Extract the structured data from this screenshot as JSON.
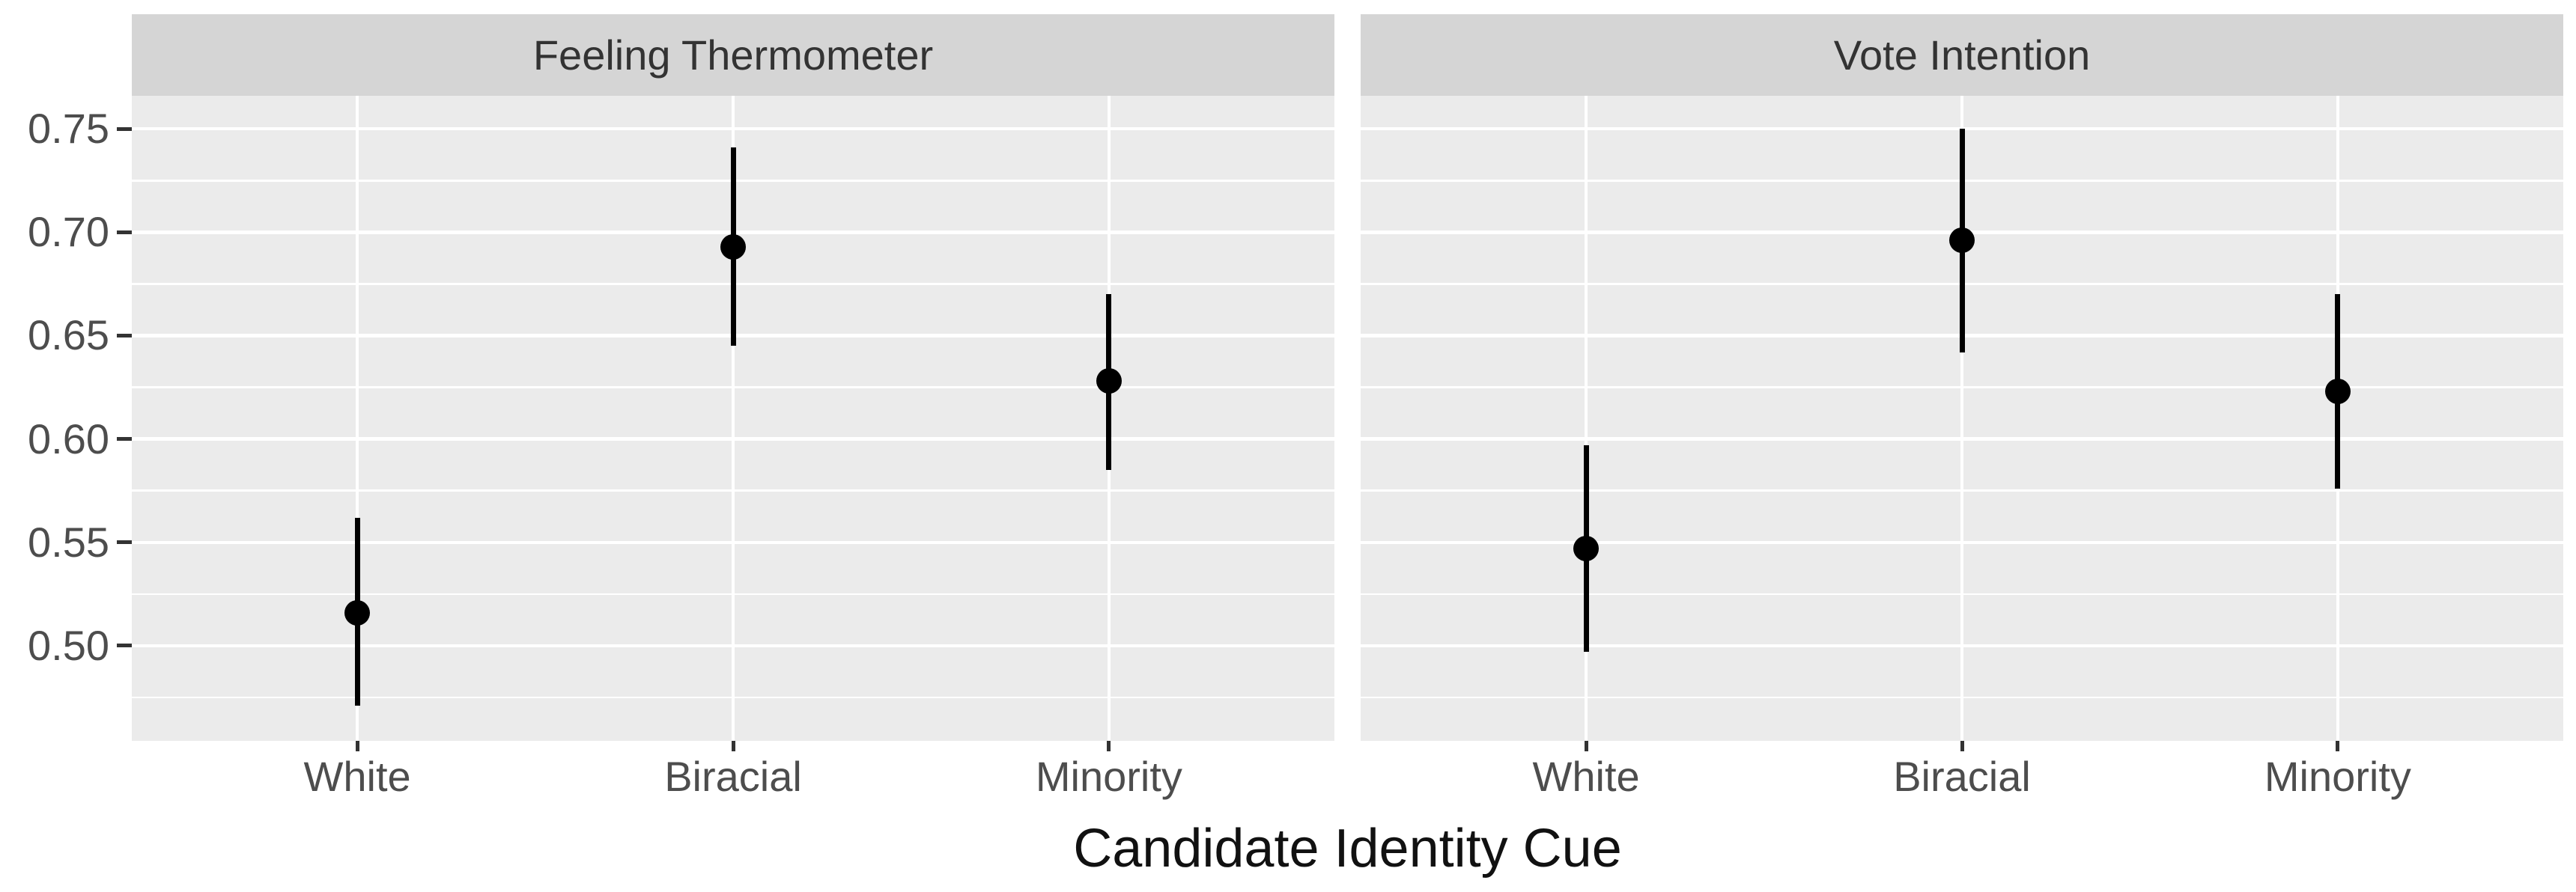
{
  "chart_data": {
    "type": "pointrange",
    "title": "",
    "xlabel": "Candidate Identity Cue",
    "ylabel": "",
    "categories": [
      "White",
      "Biracial",
      "Minority"
    ],
    "y_ticks": [
      0.5,
      0.55,
      0.6,
      0.65,
      0.7,
      0.75
    ],
    "y_tick_labels": [
      "0.50",
      "0.55",
      "0.60",
      "0.65",
      "0.70",
      "0.75"
    ],
    "ylim": [
      0.454,
      0.766
    ],
    "grid": {
      "major": "white",
      "minor": "white",
      "minor_step": 0.025,
      "legend": "none"
    },
    "facets": [
      {
        "title": "Feeling Thermometer",
        "series": [
          {
            "category": "White",
            "value": 0.516,
            "lower": 0.471,
            "upper": 0.562
          },
          {
            "category": "Biracial",
            "value": 0.693,
            "lower": 0.645,
            "upper": 0.741
          },
          {
            "category": "Minority",
            "value": 0.628,
            "lower": 0.585,
            "upper": 0.67
          }
        ]
      },
      {
        "title": "Vote Intention",
        "series": [
          {
            "category": "White",
            "value": 0.547,
            "lower": 0.497,
            "upper": 0.597
          },
          {
            "category": "Biracial",
            "value": 0.696,
            "lower": 0.642,
            "upper": 0.75
          },
          {
            "category": "Minority",
            "value": 0.623,
            "lower": 0.576,
            "upper": 0.67
          }
        ]
      }
    ],
    "colors": {
      "panel_background": "#ebebeb",
      "strip_background": "#d5d5d5",
      "gridline": "#ffffff",
      "point": "#000000",
      "axis_text": "#4d4d4d",
      "strip_text": "#333333",
      "axis_title_text": "#111111",
      "tick_mark": "#333333",
      "figure_background": "#ffffff"
    }
  }
}
